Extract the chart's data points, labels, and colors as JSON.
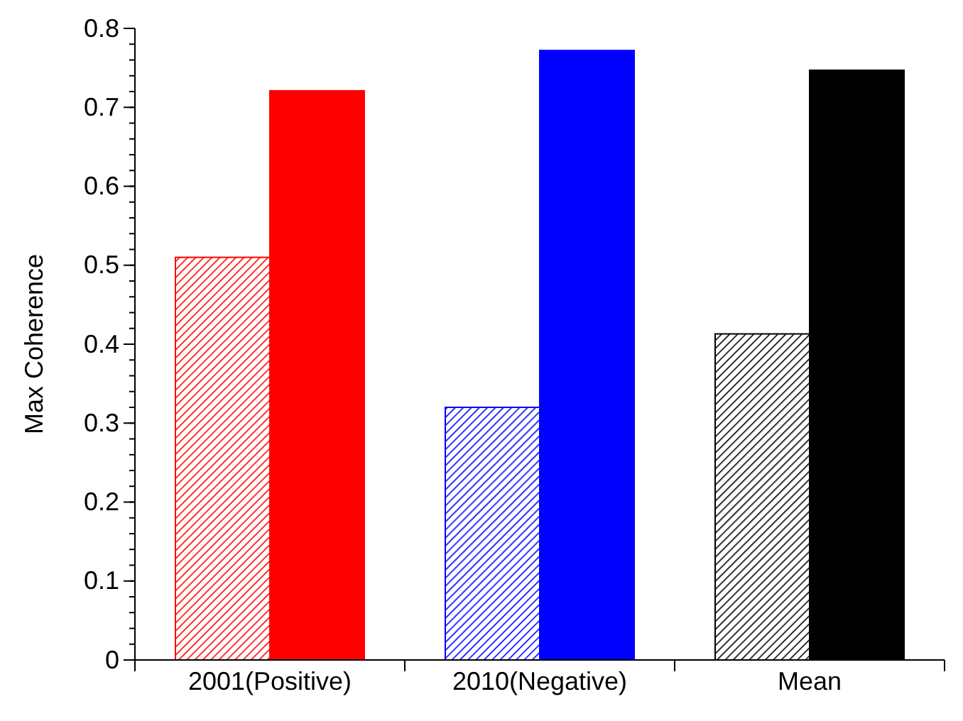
{
  "chart_data": {
    "type": "bar",
    "ylabel": "Max Coherence",
    "categories": [
      "2001(Positive)",
      "2010(Negative)",
      "Mean"
    ],
    "series": [
      {
        "colors": [
          "#ff0000",
          "#0000ff",
          "#000000"
        ],
        "values": [
          0.51,
          0.32,
          0.413
        ]
      },
      {
        "colors": [
          "#ff0000",
          "#0000ff",
          "#000000"
        ],
        "values": [
          0.721,
          0.772,
          0.747
        ]
      }
    ],
    "ylim": [
      0,
      0.8
    ],
    "yticks": [
      0,
      0.1,
      0.2,
      0.3,
      0.4,
      0.5,
      0.6,
      0.7,
      0.8
    ]
  }
}
